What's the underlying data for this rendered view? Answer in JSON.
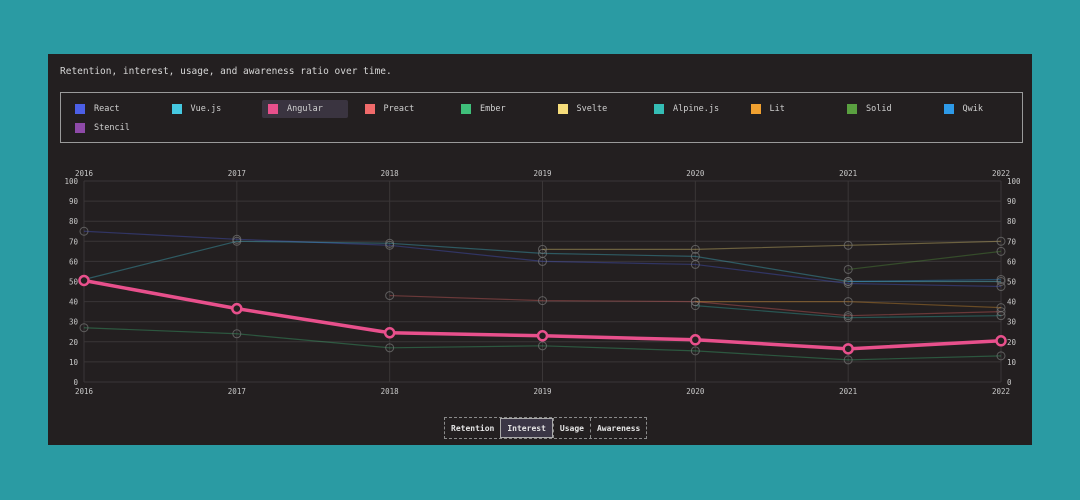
{
  "description": "Retention, interest, usage, and awareness ratio over time.",
  "legend": [
    {
      "label": "React",
      "color": "#4c5fe6"
    },
    {
      "label": "Vue.js",
      "color": "#45c8e0"
    },
    {
      "label": "Angular",
      "color": "#e8508c",
      "active": true
    },
    {
      "label": "Preact",
      "color": "#f06a6a"
    },
    {
      "label": "Ember",
      "color": "#3fbf7a"
    },
    {
      "label": "Svelte",
      "color": "#f5dc7a"
    },
    {
      "label": "Alpine.js",
      "color": "#35bdb5"
    },
    {
      "label": "Lit",
      "color": "#f0a030"
    },
    {
      "label": "Solid",
      "color": "#5aa040"
    },
    {
      "label": "Qwik",
      "color": "#2e9ae8"
    },
    {
      "label": "Stencil",
      "color": "#8e4aa8"
    }
  ],
  "buttons": [
    {
      "label": "Retention",
      "active": false
    },
    {
      "label": "Interest",
      "active": true
    },
    {
      "label": "Usage",
      "active": false
    },
    {
      "label": "Awareness",
      "active": false
    }
  ],
  "chart_data": {
    "type": "line",
    "title": "Retention, interest, usage, and awareness ratio over time.",
    "metric": "Interest",
    "x": [
      "2016",
      "2017",
      "2018",
      "2019",
      "2020",
      "2021",
      "2022"
    ],
    "ylim": [
      0,
      100
    ],
    "yticks": [
      0,
      10,
      20,
      30,
      40,
      50,
      60,
      70,
      80,
      90,
      100
    ],
    "highlighted": "Angular",
    "series": [
      {
        "name": "React",
        "color": "#4c5fe6",
        "values": [
          75,
          71,
          68,
          60,
          58.5,
          49,
          47.5
        ]
      },
      {
        "name": "Vue.js",
        "color": "#45c8e0",
        "values": [
          51,
          70,
          69,
          64,
          62.5,
          50,
          50
        ]
      },
      {
        "name": "Angular",
        "color": "#e8508c",
        "values": [
          50.5,
          36.5,
          24.5,
          23,
          21,
          16.5,
          20.5
        ]
      },
      {
        "name": "Preact",
        "color": "#f06a6a",
        "values": [
          null,
          null,
          43,
          40.5,
          40,
          33,
          35
        ]
      },
      {
        "name": "Ember",
        "color": "#3fbf7a",
        "values": [
          27,
          24,
          17,
          18,
          15.5,
          11,
          13
        ]
      },
      {
        "name": "Svelte",
        "color": "#f5dc7a",
        "values": [
          null,
          null,
          null,
          66,
          66,
          68,
          70
        ]
      },
      {
        "name": "Alpine.js",
        "color": "#35bdb5",
        "values": [
          null,
          null,
          null,
          null,
          38,
          32,
          33
        ]
      },
      {
        "name": "Lit",
        "color": "#f0a030",
        "values": [
          null,
          null,
          null,
          null,
          40,
          40,
          37
        ]
      },
      {
        "name": "Solid",
        "color": "#5aa040",
        "values": [
          null,
          null,
          null,
          null,
          null,
          56,
          65
        ]
      },
      {
        "name": "Qwik",
        "color": "#2e9ae8",
        "values": [
          null,
          null,
          null,
          null,
          null,
          50,
          51
        ]
      }
    ]
  }
}
